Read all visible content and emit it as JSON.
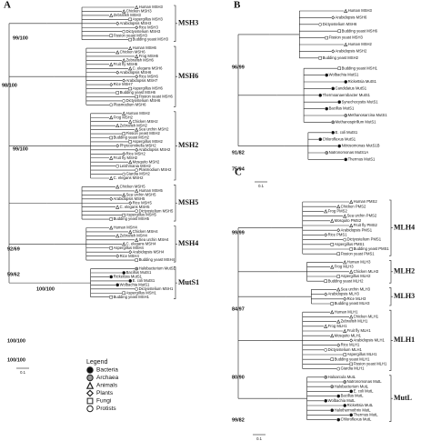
{
  "panels": [
    {
      "label": "A",
      "scale": "0.1",
      "support": [
        "98/100",
        "99/100",
        "99/100",
        "92/69",
        "59/62",
        "100/100",
        "100/100",
        "100/100"
      ],
      "clades": [
        {
          "label": "MSH3",
          "leaves": [
            {
              "label": "Human MSH3",
              "kind": 2
            },
            {
              "label": "Chicken MSH3",
              "kind": 2
            },
            {
              "label": "Zebrafish MSH3",
              "kind": 2
            },
            {
              "label": "Aspergillus MSH3",
              "kind": 4
            },
            {
              "label": "Arabidopsis MSH3",
              "kind": 3
            },
            {
              "label": "Rice MSH3",
              "kind": 3
            },
            {
              "label": "Dictyostelium MSH3",
              "kind": 5
            },
            {
              "label": "Fission yeast MSH3",
              "kind": 4
            },
            {
              "label": "Budding yeast MSH3",
              "kind": 4
            }
          ]
        },
        {
          "label": "MSH6",
          "leaves": [
            {
              "label": "Human MSH6",
              "kind": 2
            },
            {
              "label": "Chicken MSH6",
              "kind": 2
            },
            {
              "label": "Frog MSH6",
              "kind": 2
            },
            {
              "label": "Zebrafish MSH6",
              "kind": 2
            },
            {
              "label": "Fruit fly MSH6",
              "kind": 2
            },
            {
              "label": "C. elegans MSH6",
              "kind": 2
            },
            {
              "label": "Arabidopsis MSH6",
              "kind": 3
            },
            {
              "label": "Rice MSH6",
              "kind": 3
            },
            {
              "label": "Arabidopsis MSH7",
              "kind": 3
            },
            {
              "label": "Rice MSH7",
              "kind": 3
            },
            {
              "label": "Aspergillus MSH6",
              "kind": 4
            },
            {
              "label": "Budding yeast MSH6",
              "kind": 4
            },
            {
              "label": "Fission yeast MSH6",
              "kind": 4
            },
            {
              "label": "Dictyostelium MSH6",
              "kind": 5
            },
            {
              "label": "Plasmodium MSH6",
              "kind": 5
            }
          ]
        },
        {
          "label": "MSH2",
          "leaves": [
            {
              "label": "Human MSH2",
              "kind": 2
            },
            {
              "label": "Frog MSH2",
              "kind": 2
            },
            {
              "label": "Chicken MSH2",
              "kind": 2
            },
            {
              "label": "Zebrafish MSH2",
              "kind": 2
            },
            {
              "label": "Sea urchin MSH2",
              "kind": 2
            },
            {
              "label": "Fission yeast MSH2",
              "kind": 4
            },
            {
              "label": "Budding yeast MSH2",
              "kind": 4
            },
            {
              "label": "Aspergillus MSH2",
              "kind": 4
            },
            {
              "label": "Physcomitrella MSH2",
              "kind": 3
            },
            {
              "label": "Arabidopsis MSH2",
              "kind": 3
            },
            {
              "label": "Rice MSH2",
              "kind": 3
            },
            {
              "label": "Fruit fly MSH2",
              "kind": 2
            },
            {
              "label": "Mosquito MSH2",
              "kind": 2
            },
            {
              "label": "Leishmania MSH2",
              "kind": 5
            },
            {
              "label": "Plasmodium MSH2",
              "kind": 5
            },
            {
              "label": "Giardia MSH2",
              "kind": 5
            },
            {
              "label": "C. elegans MSH2",
              "kind": 2
            }
          ]
        },
        {
          "label": "MSH5",
          "leaves": [
            {
              "label": "Chicken MSH5",
              "kind": 2
            },
            {
              "label": "Human MSH5",
              "kind": 2
            },
            {
              "label": "Sea urchin MSH5",
              "kind": 2
            },
            {
              "label": "Arabidopsis MSH5",
              "kind": 3
            },
            {
              "label": "Rice MSH5",
              "kind": 3
            },
            {
              "label": "C. elegans MSH5",
              "kind": 2
            },
            {
              "label": "Dictyostelium MSH5",
              "kind": 5
            },
            {
              "label": "Aspergillus MSH5",
              "kind": 4
            },
            {
              "label": "Budding yeast MSH5",
              "kind": 4
            }
          ]
        },
        {
          "label": "MSH4",
          "leaves": [
            {
              "label": "Human MSH4",
              "kind": 2
            },
            {
              "label": "Chicken MSH4",
              "kind": 2
            },
            {
              "label": "Zebrafish MSH4",
              "kind": 2
            },
            {
              "label": "Sea urchin MSH4",
              "kind": 2
            },
            {
              "label": "C. elegans MSH4",
              "kind": 2
            },
            {
              "label": "Aspergillus MSH4",
              "kind": 4
            },
            {
              "label": "Arabidopsis MSH4",
              "kind": 3
            },
            {
              "label": "Rice MSH4",
              "kind": 3
            },
            {
              "label": "Budding yeast MSH4",
              "kind": 4
            }
          ]
        },
        {
          "label": "MutS1",
          "leaves": [
            {
              "label": "Halobacterium MutS1",
              "kind": 1
            },
            {
              "label": "Bacillus MutS1",
              "kind": 0
            },
            {
              "label": "Rickettsia MutS1",
              "kind": 0
            },
            {
              "label": "E. coli MutS1",
              "kind": 0
            },
            {
              "label": "Wolbachia MutS1",
              "kind": 0
            },
            {
              "label": "Dictyostelium MSH1",
              "kind": 5
            },
            {
              "label": "Aspergillus MSH1",
              "kind": 4
            },
            {
              "label": "Budding yeast MSH1",
              "kind": 4
            }
          ]
        }
      ]
    },
    {
      "label": "B",
      "scale": "0.1",
      "support": [
        "96/99",
        "91/82",
        "75/94"
      ],
      "clades": [
        {
          "leaves": [
            {
              "label": "Human MSH3",
              "kind": 2
            },
            {
              "label": "Arabidopsis MSH6",
              "kind": 3
            },
            {
              "label": "Dictyostelium MSH6",
              "kind": 5
            },
            {
              "label": "Budding yeast MSH6",
              "kind": 4
            },
            {
              "label": "Fission yeast MSH3",
              "kind": 4
            },
            {
              "label": "Human MSH2",
              "kind": 2
            },
            {
              "label": "Arabidopsis MSH2",
              "kind": 3
            },
            {
              "label": "Budding yeast MSH2",
              "kind": 4
            }
          ]
        },
        {
          "leaves": [
            {
              "label": "Budding yeast MSH1",
              "kind": 4
            },
            {
              "label": "Wolbachia MutS1",
              "kind": 0
            },
            {
              "label": "Rickettsia MutS1",
              "kind": 0
            },
            {
              "label": "Candidatus MutS1",
              "kind": 0
            },
            {
              "label": "Thermoanaerobacter MutS1",
              "kind": 0
            },
            {
              "label": "Synechocystis MutS1",
              "kind": 0
            },
            {
              "label": "Bacillus MutS1",
              "kind": 0
            },
            {
              "label": "Methanosarcina MutS1",
              "kind": 1
            },
            {
              "label": "Methanospirillum MutS1",
              "kind": 1
            }
          ]
        },
        {
          "leaves": [
            {
              "label": "E. coli MutS1",
              "kind": 0
            },
            {
              "label": "Chloroflexus MutS1",
              "kind": 0
            },
            {
              "label": "Nitrosomonas MutS1B",
              "kind": 0
            },
            {
              "label": "Natronomonas MutS1A",
              "kind": 1
            },
            {
              "label": "Thermus MutS1",
              "kind": 0
            }
          ]
        }
      ]
    },
    {
      "label": "C",
      "scale": "0.1",
      "support": [
        "99/99",
        "84/97",
        "80/90",
        "99/82"
      ],
      "clades": [
        {
          "label": "MLH4",
          "leaves": [
            {
              "label": "Human PMS2",
              "kind": 2
            },
            {
              "label": "Chicken PMS2",
              "kind": 2
            },
            {
              "label": "Frog PMS2",
              "kind": 2
            },
            {
              "label": "Sea urchin PMS2",
              "kind": 2
            },
            {
              "label": "Mosquito PMS2",
              "kind": 2
            },
            {
              "label": "Fruit fly PMS2",
              "kind": 2
            },
            {
              "label": "Arabidopsis PMS1",
              "kind": 3
            },
            {
              "label": "Rice PMS1",
              "kind": 3
            },
            {
              "label": "Dictyostelium PMS1",
              "kind": 5
            },
            {
              "label": "Aspergillus PMS1",
              "kind": 4
            },
            {
              "label": "Budding yeast PMS1",
              "kind": 4
            },
            {
              "label": "Fission yeast PMS1",
              "kind": 4
            }
          ]
        },
        {
          "label": "MLH2",
          "leaves": [
            {
              "label": "Human MLH3",
              "kind": 2
            },
            {
              "label": "Frog MLH3",
              "kind": 2
            },
            {
              "label": "Chicken MLH3",
              "kind": 2
            },
            {
              "label": "Aspergillus MLH2",
              "kind": 4
            },
            {
              "label": "Budding yeast MLH2",
              "kind": 4
            }
          ]
        },
        {
          "label": "MLH3",
          "leaves": [
            {
              "label": "Sea urchin MLH3",
              "kind": 2
            },
            {
              "label": "Arabidopsis MLH3",
              "kind": 3
            },
            {
              "label": "Rice MLH3",
              "kind": 3
            },
            {
              "label": "Budding yeast MLH3",
              "kind": 4
            }
          ]
        },
        {
          "label": "MLH1",
          "leaves": [
            {
              "label": "Human MLH1",
              "kind": 2
            },
            {
              "label": "Chicken MLH1",
              "kind": 2
            },
            {
              "label": "Zebrafish MLH1",
              "kind": 2
            },
            {
              "label": "Frog MLH1",
              "kind": 2
            },
            {
              "label": "Fruit fly MLH1",
              "kind": 2
            },
            {
              "label": "Mosquito MLH1",
              "kind": 2
            },
            {
              "label": "Arabidopsis MLH1",
              "kind": 3
            },
            {
              "label": "Rice MLH1",
              "kind": 3
            },
            {
              "label": "Dictyostelium MLH1",
              "kind": 5
            },
            {
              "label": "Aspergillus MLH1",
              "kind": 4
            },
            {
              "label": "Budding yeast MLH1",
              "kind": 4
            },
            {
              "label": "Fission yeast MLH1",
              "kind": 4
            },
            {
              "label": "Giardia MLH1",
              "kind": 5
            }
          ]
        },
        {
          "label": "MutL",
          "leaves": [
            {
              "label": "Haloarcula MutL",
              "kind": 1
            },
            {
              "label": "Natronomonas MutL",
              "kind": 1
            },
            {
              "label": "Halobacterium MutL",
              "kind": 1
            },
            {
              "label": "E. coli MutL",
              "kind": 0
            },
            {
              "label": "Bacillus MutL",
              "kind": 0
            },
            {
              "label": "Wolbachia MutL",
              "kind": 0
            },
            {
              "label": "Rickettsia MutL",
              "kind": 0
            },
            {
              "label": "Halothermothrix MutL",
              "kind": 0
            },
            {
              "label": "Thermus MutL",
              "kind": 0
            },
            {
              "label": "Chloroflexus MutL",
              "kind": 0
            }
          ]
        }
      ]
    }
  ],
  "legend": {
    "title": "Legend",
    "items": [
      "Bacteria",
      "Archaea",
      "Animals",
      "Plants",
      "Fungi",
      "Protists"
    ]
  }
}
